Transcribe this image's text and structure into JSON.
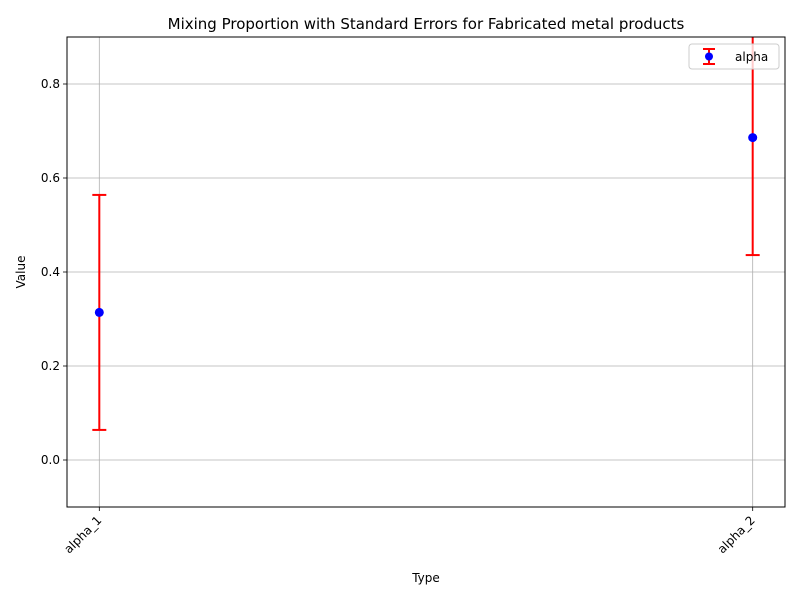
{
  "chart_data": {
    "type": "scatter",
    "title": "Mixing Proportion with Standard Errors for Fabricated metal products",
    "xlabel": "Type",
    "ylabel": "Value",
    "categories": [
      "alpha_1",
      "alpha_2"
    ],
    "ylim": [
      -0.1,
      0.9
    ],
    "yticks": [
      0.0,
      0.2,
      0.4,
      0.6,
      0.8
    ],
    "ytick_labels": [
      "0.0",
      "0.2",
      "0.4",
      "0.6",
      "0.8"
    ],
    "grid": true,
    "legend_position": "top-right",
    "series": [
      {
        "name": "alpha",
        "values": [
          0.314,
          0.686
        ],
        "errors": [
          0.25,
          0.25
        ],
        "marker_color": "#0000ff",
        "error_color": "#ff0000"
      }
    ]
  }
}
